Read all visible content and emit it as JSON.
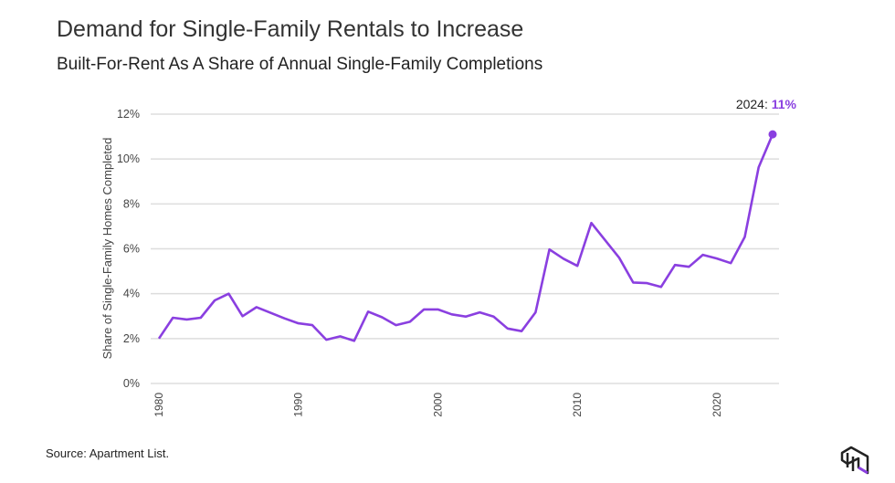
{
  "title": "Demand for Single-Family Rentals to Increase",
  "subtitle": "Built-For-Rent As A Share of Annual Single-Family Completions",
  "source": "Source: Apartment List.",
  "chart_data": {
    "type": "line",
    "title": "Demand for Single-Family Rentals to Increase",
    "subtitle": "Built-For-Rent As A Share of Annual Single-Family Completions",
    "xlabel": "",
    "ylabel": "Share of Single-Family Homes Completed",
    "ylim": [
      0,
      12
    ],
    "xlim": [
      1980,
      2024
    ],
    "yticks": [
      "0%",
      "2%",
      "4%",
      "6%",
      "8%",
      "10%",
      "12%"
    ],
    "xticks": [
      "1980",
      "1990",
      "2000",
      "2010",
      "2020"
    ],
    "grid": true,
    "color": "#8a3fe0",
    "annotation": {
      "year_label": "2024: ",
      "value_label": "11%"
    },
    "x": [
      1980,
      1981,
      1982,
      1983,
      1984,
      1985,
      1986,
      1987,
      1988,
      1989,
      1990,
      1991,
      1992,
      1993,
      1994,
      1995,
      1996,
      1997,
      1998,
      1999,
      2000,
      2001,
      2002,
      2003,
      2004,
      2005,
      2006,
      2007,
      2008,
      2009,
      2010,
      2011,
      2012,
      2013,
      2014,
      2015,
      2016,
      2017,
      2018,
      2019,
      2020,
      2021,
      2022,
      2023,
      2024
    ],
    "values": [
      2.0,
      2.93,
      2.85,
      2.93,
      3.7,
      4.0,
      3.0,
      3.4,
      3.15,
      2.9,
      2.68,
      2.6,
      1.95,
      2.1,
      1.9,
      3.2,
      2.95,
      2.6,
      2.75,
      3.3,
      3.3,
      3.08,
      2.98,
      3.17,
      2.98,
      2.45,
      2.33,
      3.17,
      5.97,
      5.56,
      5.24,
      7.15,
      6.38,
      5.6,
      4.5,
      4.47,
      4.3,
      5.28,
      5.2,
      5.73,
      5.57,
      5.36,
      6.53,
      9.63,
      11.1
    ]
  }
}
